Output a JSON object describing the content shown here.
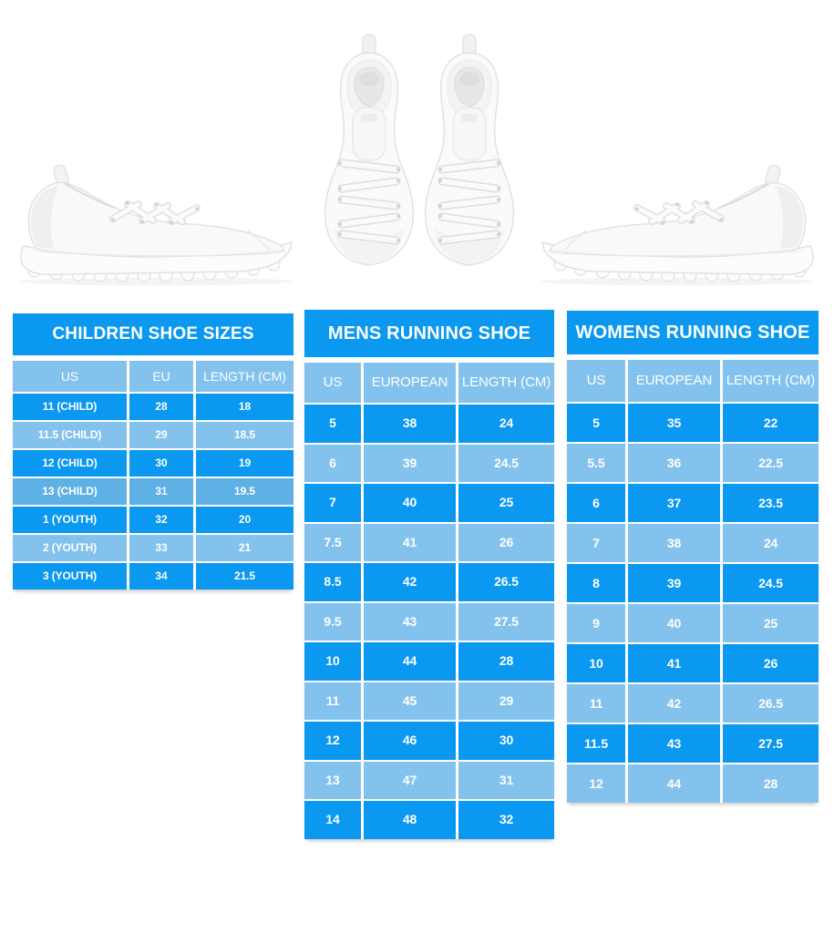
{
  "page": {
    "background": "#ffffff"
  },
  "colors": {
    "primary_blue": "#0a98f0",
    "light_blue": "#84c2ee",
    "medium_blue": "#5fb0e5",
    "separator_white": "#ffffff",
    "text_white": "#ffffff"
  },
  "images": {
    "left_shoe": "white-running-shoe-side-view",
    "center_shoes": "white-running-shoes-pair-top-view",
    "right_shoe": "white-running-shoe-side-view-mirrored"
  },
  "tables": {
    "children": {
      "title": "CHILDREN SHOE SIZES",
      "headers": [
        "US",
        "EU",
        "LENGTH (CM)"
      ],
      "rows": [
        [
          "11 (CHILD)",
          "28",
          "18"
        ],
        [
          "11.5 (CHILD)",
          "29",
          "18.5"
        ],
        [
          "12 (CHILD)",
          "30",
          "19"
        ],
        [
          "13 (CHILD)",
          "31",
          "19.5"
        ],
        [
          "1 (YOUTH)",
          "32",
          "20"
        ],
        [
          "2 (YOUTH)",
          "33",
          "21"
        ],
        [
          "3 (YOUTH)",
          "34",
          "21.5"
        ]
      ],
      "row_shades": [
        "dark",
        "light",
        "dark",
        "medium",
        "dark",
        "light",
        "dark"
      ]
    },
    "mens": {
      "title": "MENS RUNNING SHOE",
      "headers": [
        "US",
        "EUROPEAN",
        "LENGTH (CM)"
      ],
      "rows": [
        [
          "5",
          "38",
          "24"
        ],
        [
          "6",
          "39",
          "24.5"
        ],
        [
          "7",
          "40",
          "25"
        ],
        [
          "7.5",
          "41",
          "26"
        ],
        [
          "8.5",
          "42",
          "26.5"
        ],
        [
          "9.5",
          "43",
          "27.5"
        ],
        [
          "10",
          "44",
          "28"
        ],
        [
          "11",
          "45",
          "29"
        ],
        [
          "12",
          "46",
          "30"
        ],
        [
          "13",
          "47",
          "31"
        ],
        [
          "14",
          "48",
          "32"
        ]
      ]
    },
    "womens": {
      "title": "WOMENS RUNNING SHOE",
      "headers": [
        "US",
        "EUROPEAN",
        "LENGTH (CM)"
      ],
      "rows": [
        [
          "5",
          "35",
          "22"
        ],
        [
          "5.5",
          "36",
          "22.5"
        ],
        [
          "6",
          "37",
          "23.5"
        ],
        [
          "7",
          "38",
          "24"
        ],
        [
          "8",
          "39",
          "24.5"
        ],
        [
          "9",
          "40",
          "25"
        ],
        [
          "10",
          "41",
          "26"
        ],
        [
          "11",
          "42",
          "26.5"
        ],
        [
          "11.5",
          "43",
          "27.5"
        ],
        [
          "12",
          "44",
          "28"
        ]
      ]
    }
  }
}
